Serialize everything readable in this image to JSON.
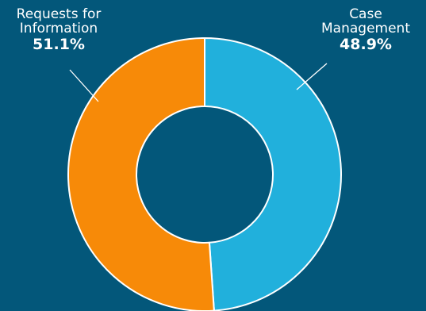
{
  "chart_data": {
    "type": "pie",
    "donut": true,
    "slices": [
      {
        "label_lines": [
          "Case",
          "Management"
        ],
        "value": 48.9,
        "value_label": "48.9%",
        "color": "#21b0dc"
      },
      {
        "label_lines": [
          "Requests for",
          "Information"
        ],
        "value": 51.1,
        "value_label": "51.1%",
        "color": "#f78a08"
      }
    ],
    "background": "#03577a",
    "separator_color": "#ffffff"
  }
}
